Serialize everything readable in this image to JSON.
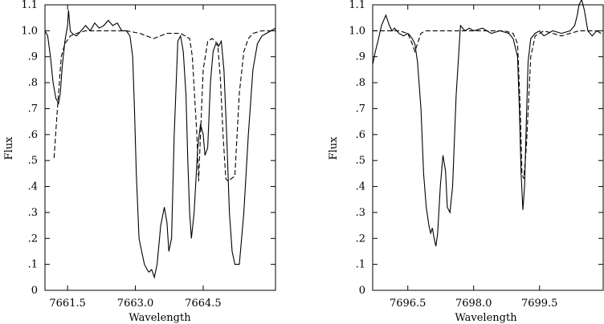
{
  "chart_data": [
    {
      "type": "line",
      "xlabel": "Wavelength",
      "ylabel": "Flux",
      "xlim": [
        7661.0,
        7666.1
      ],
      "ylim": [
        0,
        1.1
      ],
      "xticks": [
        7661.5,
        7663.0,
        7664.5
      ],
      "xtick_labels": [
        "7661.5",
        "7663.0",
        "7664.5"
      ],
      "yticks": [
        0,
        0.1,
        0.2,
        0.3,
        0.4,
        0.5,
        0.6,
        0.7,
        0.8,
        0.9,
        1.0,
        1.1
      ],
      "ytick_labels": [
        "0",
        ".1",
        ".2",
        ".3",
        ".4",
        ".5",
        ".6",
        ".7",
        ".8",
        ".9",
        "1.0",
        "1.1"
      ],
      "series": [
        {
          "style": "solid",
          "x": [
            7661.0,
            7661.06,
            7661.12,
            7661.18,
            7661.24,
            7661.3,
            7661.34,
            7661.38,
            7661.44,
            7661.5,
            7661.52,
            7661.56,
            7661.6,
            7661.7,
            7661.8,
            7661.9,
            7662.0,
            7662.1,
            7662.2,
            7662.3,
            7662.4,
            7662.5,
            7662.6,
            7662.7,
            7662.8,
            7662.88,
            7662.94,
            7662.98,
            7663.02,
            7663.08,
            7663.14,
            7663.2,
            7663.26,
            7663.3,
            7663.36,
            7663.42,
            7663.48,
            7663.56,
            7663.64,
            7663.7,
            7663.74,
            7663.8,
            7663.86,
            7663.94,
            7664.0,
            7664.06,
            7664.12,
            7664.16,
            7664.2,
            7664.24,
            7664.3,
            7664.38,
            7664.44,
            7664.5,
            7664.54,
            7664.6,
            7664.66,
            7664.72,
            7664.78,
            7664.84,
            7664.9,
            7664.96,
            7665.02,
            7665.08,
            7665.14,
            7665.2,
            7665.3,
            7665.4,
            7665.5,
            7665.6,
            7665.7,
            7665.8,
            7665.9,
            7666.0,
            7666.1
          ],
          "y": [
            1.0,
            0.98,
            0.9,
            0.8,
            0.74,
            0.72,
            0.76,
            0.86,
            0.96,
            1.02,
            1.08,
            1.0,
            0.99,
            0.98,
            1.0,
            1.02,
            1.0,
            1.03,
            1.01,
            1.02,
            1.04,
            1.02,
            1.03,
            1.0,
            1.0,
            0.98,
            0.9,
            0.7,
            0.45,
            0.2,
            0.15,
            0.1,
            0.08,
            0.07,
            0.08,
            0.05,
            0.1,
            0.25,
            0.32,
            0.26,
            0.15,
            0.2,
            0.6,
            0.96,
            0.98,
            0.92,
            0.75,
            0.5,
            0.3,
            0.2,
            0.3,
            0.55,
            0.64,
            0.6,
            0.52,
            0.55,
            0.8,
            0.92,
            0.95,
            0.94,
            0.96,
            0.85,
            0.6,
            0.3,
            0.15,
            0.1,
            0.1,
            0.3,
            0.6,
            0.85,
            0.95,
            0.98,
            0.99,
            1.0,
            1.01
          ]
        },
        {
          "style": "dashed",
          "x": [
            7661.2,
            7661.26,
            7661.3,
            7661.36,
            7661.44,
            7661.56,
            7661.7,
            7661.9,
            7662.2,
            7662.5,
            7662.8,
            7663.1,
            7663.4,
            7663.7,
            7664.0,
            7664.2,
            7664.26,
            7664.3,
            7664.36,
            7664.4,
            7664.44,
            7664.5,
            7664.6,
            7664.7,
            7664.82,
            7664.88,
            7664.94,
            7665.0,
            7665.06,
            7665.12,
            7665.2,
            7665.3,
            7665.4,
            7665.5,
            7665.6,
            7665.8,
            7666.1
          ],
          "y": [
            0.51,
            0.66,
            0.76,
            0.9,
            0.95,
            0.98,
            0.99,
            1.0,
            1.0,
            1.0,
            1.0,
            0.99,
            0.97,
            0.99,
            0.99,
            0.97,
            0.9,
            0.78,
            0.6,
            0.42,
            0.6,
            0.85,
            0.96,
            0.97,
            0.95,
            0.82,
            0.6,
            0.43,
            0.42,
            0.43,
            0.44,
            0.76,
            0.92,
            0.97,
            0.99,
            1.0,
            1.0
          ]
        }
      ]
    },
    {
      "type": "line",
      "xlabel": "Wavelength",
      "ylabel": "Flux",
      "xlim": [
        7695.7,
        7700.95
      ],
      "ylim": [
        0,
        1.1
      ],
      "xticks": [
        7696.5,
        7698.0,
        7699.5
      ],
      "xtick_labels": [
        "7696.5",
        "7698.0",
        "7699.5"
      ],
      "yticks": [
        0,
        0.1,
        0.2,
        0.3,
        0.4,
        0.5,
        0.6,
        0.7,
        0.8,
        0.9,
        1.0,
        1.1
      ],
      "ytick_labels": [
        "0",
        ".1",
        ".2",
        ".3",
        ".4",
        ".5",
        ".6",
        ".7",
        ".8",
        ".9",
        "1.0",
        "1.1"
      ],
      "series": [
        {
          "style": "solid",
          "x": [
            7695.7,
            7695.76,
            7695.82,
            7695.9,
            7696.0,
            7696.08,
            7696.14,
            7696.2,
            7696.3,
            7696.4,
            7696.5,
            7696.56,
            7696.6,
            7696.66,
            7696.72,
            7696.8,
            7696.86,
            7696.92,
            7696.98,
            7697.02,
            7697.06,
            7697.1,
            7697.14,
            7697.18,
            7697.24,
            7697.3,
            7697.36,
            7697.4,
            7697.46,
            7697.52,
            7697.6,
            7697.7,
            7697.8,
            7697.9,
            7698.0,
            7698.2,
            7698.4,
            7698.6,
            7698.8,
            7698.9,
            7699.0,
            7699.04,
            7699.08,
            7699.12,
            7699.16,
            7699.2,
            7699.24,
            7699.3,
            7699.4,
            7699.5,
            7699.6,
            7699.8,
            7700.0,
            7700.2,
            7700.3,
            7700.36,
            7700.4,
            7700.46,
            7700.52,
            7700.6,
            7700.7,
            7700.8,
            7700.9
          ],
          "y": [
            0.87,
            0.92,
            0.96,
            1.02,
            1.06,
            1.02,
            1.0,
            1.01,
            0.99,
            0.98,
            0.99,
            0.98,
            0.97,
            0.95,
            0.88,
            0.7,
            0.45,
            0.32,
            0.25,
            0.22,
            0.24,
            0.2,
            0.17,
            0.22,
            0.4,
            0.52,
            0.46,
            0.32,
            0.3,
            0.4,
            0.75,
            1.02,
            1.0,
            1.01,
            1.0,
            1.01,
            0.99,
            1.0,
            0.99,
            0.97,
            0.9,
            0.7,
            0.45,
            0.31,
            0.4,
            0.65,
            0.88,
            0.97,
            0.99,
            1.0,
            0.98,
            1.0,
            0.99,
            1.0,
            1.02,
            1.06,
            1.1,
            1.12,
            1.08,
            1.0,
            0.98,
            1.0,
            0.99
          ]
        },
        {
          "style": "dashed",
          "x": [
            7695.7,
            7696.0,
            7696.3,
            7696.5,
            7696.6,
            7696.66,
            7696.72,
            7696.8,
            7696.9,
            7697.1,
            7697.5,
            7698.0,
            7698.4,
            7698.7,
            7698.9,
            7699.0,
            7699.06,
            7699.1,
            7699.14,
            7699.2,
            7699.3,
            7699.4,
            7699.6,
            7699.8,
            7700.0,
            7700.4,
            7700.95
          ],
          "y": [
            1.0,
            1.0,
            1.0,
            0.99,
            0.95,
            0.92,
            0.95,
            0.99,
            1.0,
            1.0,
            1.0,
            1.0,
            1.0,
            1.0,
            0.99,
            0.95,
            0.7,
            0.45,
            0.43,
            0.55,
            0.9,
            0.98,
            1.0,
            0.99,
            0.98,
            1.0,
            1.0
          ]
        }
      ]
    }
  ]
}
